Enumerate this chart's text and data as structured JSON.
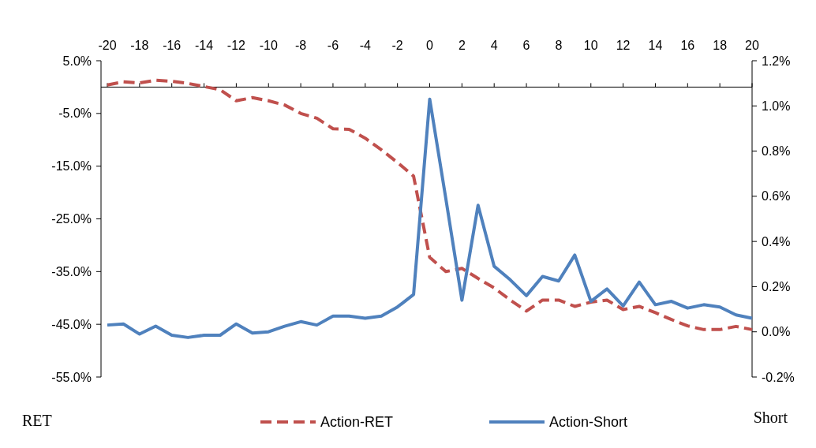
{
  "chart_data": {
    "type": "line",
    "ylabel": "RET",
    "y2label": "Short",
    "x": [
      -20,
      -19,
      -18,
      -17,
      -16,
      -15,
      -14,
      -13,
      -12,
      -11,
      -10,
      -9,
      -8,
      -7,
      -6,
      -5,
      -4,
      -3,
      -2,
      -1,
      0,
      1,
      2,
      3,
      4,
      5,
      6,
      7,
      8,
      9,
      10,
      11,
      12,
      13,
      14,
      15,
      16,
      17,
      18,
      19,
      20
    ],
    "series": [
      {
        "name": "Action-RET",
        "color": "#c0504d",
        "line_style": "dashed",
        "values": [
          0.4,
          1.0,
          0.8,
          1.3,
          1.1,
          0.7,
          0.1,
          -0.5,
          -2.6,
          -2.0,
          -2.6,
          -3.4,
          -5.0,
          -5.9,
          -7.9,
          -8.0,
          -9.7,
          -11.9,
          -14.3,
          -16.9,
          -32.3,
          -35.0,
          -34.4,
          -36.3,
          -38.1,
          -40.4,
          -42.5,
          -40.4,
          -40.4,
          -41.6,
          -40.8,
          -40.4,
          -42.2,
          -41.6,
          -42.8,
          -44.1,
          -45.3,
          -46.0,
          -46.0,
          -45.4,
          -46.0
        ]
      },
      {
        "name": "Action-Short",
        "color": "#4f81bd",
        "line_style": "solid",
        "axis": "y2",
        "values": [
          0.03,
          0.035,
          -0.01,
          0.025,
          -0.015,
          -0.025,
          -0.015,
          -0.015,
          0.035,
          -0.005,
          0.0,
          0.025,
          0.045,
          0.03,
          0.07,
          0.07,
          0.06,
          0.07,
          0.11,
          0.165,
          1.03,
          0.59,
          0.14,
          0.56,
          0.29,
          0.23,
          0.16,
          0.245,
          0.225,
          0.34,
          0.135,
          0.19,
          0.115,
          0.22,
          0.12,
          0.135,
          0.105,
          0.12,
          0.11,
          0.075,
          0.06
        ]
      }
    ],
    "xlim": [
      -20,
      20
    ],
    "xticks": [
      -20,
      -18,
      -16,
      -14,
      -12,
      -10,
      -8,
      -6,
      -4,
      -2,
      0,
      2,
      4,
      6,
      8,
      10,
      12,
      14,
      16,
      18,
      20
    ],
    "ylim": [
      -55,
      5
    ],
    "yticks": [
      {
        "value": 5,
        "label": "5.0%"
      },
      {
        "value": -5,
        "label": "-5.0%"
      },
      {
        "value": -15,
        "label": "-15.0%"
      },
      {
        "value": -25,
        "label": "-25.0%"
      },
      {
        "value": -35,
        "label": "-35.0%"
      },
      {
        "value": -45,
        "label": "-45.0%"
      },
      {
        "value": -55,
        "label": "-55.0%"
      }
    ],
    "y2lim": [
      -0.2,
      1.2
    ],
    "y2ticks": [
      {
        "value": 1.2,
        "label": "1.2%"
      },
      {
        "value": 1.0,
        "label": "1.0%"
      },
      {
        "value": 0.8,
        "label": "0.8%"
      },
      {
        "value": 0.6,
        "label": "0.6%"
      },
      {
        "value": 0.4,
        "label": "0.4%"
      },
      {
        "value": 0.2,
        "label": "0.2%"
      },
      {
        "value": 0.0,
        "label": "0.0%"
      },
      {
        "value": -0.2,
        "label": "-0.2%"
      }
    ],
    "grid": false,
    "legend": "bottom",
    "marker": "none"
  }
}
